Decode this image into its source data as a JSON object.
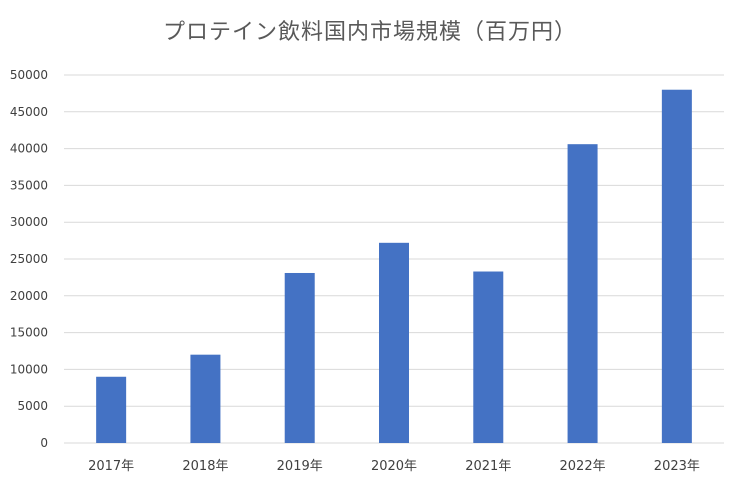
{
  "chart_data": {
    "type": "bar",
    "title": "プロテイン飲料国内市場規模（百万円）",
    "xlabel": "",
    "ylabel": "",
    "categories": [
      "2017年",
      "2018年",
      "2019年",
      "2020年",
      "2021年",
      "2022年",
      "2023年"
    ],
    "values": [
      9000,
      12000,
      23100,
      27200,
      23300,
      40600,
      48000
    ],
    "ylim": [
      0,
      50000
    ],
    "yticks": [
      0,
      5000,
      10000,
      15000,
      20000,
      25000,
      30000,
      35000,
      40000,
      45000,
      50000
    ],
    "grid": true,
    "legend": "none",
    "bar_color": "#4472C4",
    "grid_color": "#D9D9D9"
  }
}
